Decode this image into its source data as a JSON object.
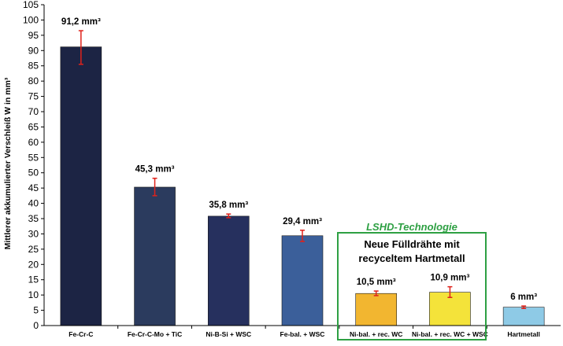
{
  "chart_data": {
    "type": "bar",
    "ylabel": "Mittlerer akkumulierter Verschleiß W in mm³",
    "ylim": [
      0,
      105
    ],
    "ytick_step": 5,
    "grid": false,
    "legend": "none",
    "categories": [
      "Fe-Cr-C",
      "Fe-Cr-C-Mo + TiC",
      "Ni-B-Si + WSC",
      "Fe-bal. + WSC",
      "Ni-bal. + rec. WC",
      "Ni-bal. + rec. WC + WSC",
      "Hartmetall"
    ],
    "values": [
      91.2,
      45.3,
      35.8,
      29.4,
      10.5,
      10.9,
      6
    ],
    "error_bars": [
      [
        85.5,
        96.5
      ],
      [
        42.5,
        48.2
      ],
      [
        35.3,
        36.5
      ],
      [
        27.5,
        31.2
      ],
      [
        9.8,
        11.3
      ],
      [
        9.2,
        12.7
      ],
      [
        5.6,
        6.4
      ]
    ],
    "data_labels": [
      "91,2 mm³",
      "45,3 mm³",
      "35,8 mm³",
      "29,4 mm³",
      "10,5 mm³",
      "10,9 mm³",
      "6 mm³"
    ],
    "bar_colors": [
      "#1c2444",
      "#2b3b5e",
      "#26305e",
      "#3b5f9a",
      "#f2b630",
      "#f4e33a",
      "#8ecae6"
    ],
    "error_color": "#e0221b",
    "annotation": {
      "title": "LSHD-Technologie",
      "text_line1": "Neue Fülldrähte mit",
      "text_line2": "recyceltem  Hartmetall",
      "box_color": "#2ea043"
    }
  }
}
